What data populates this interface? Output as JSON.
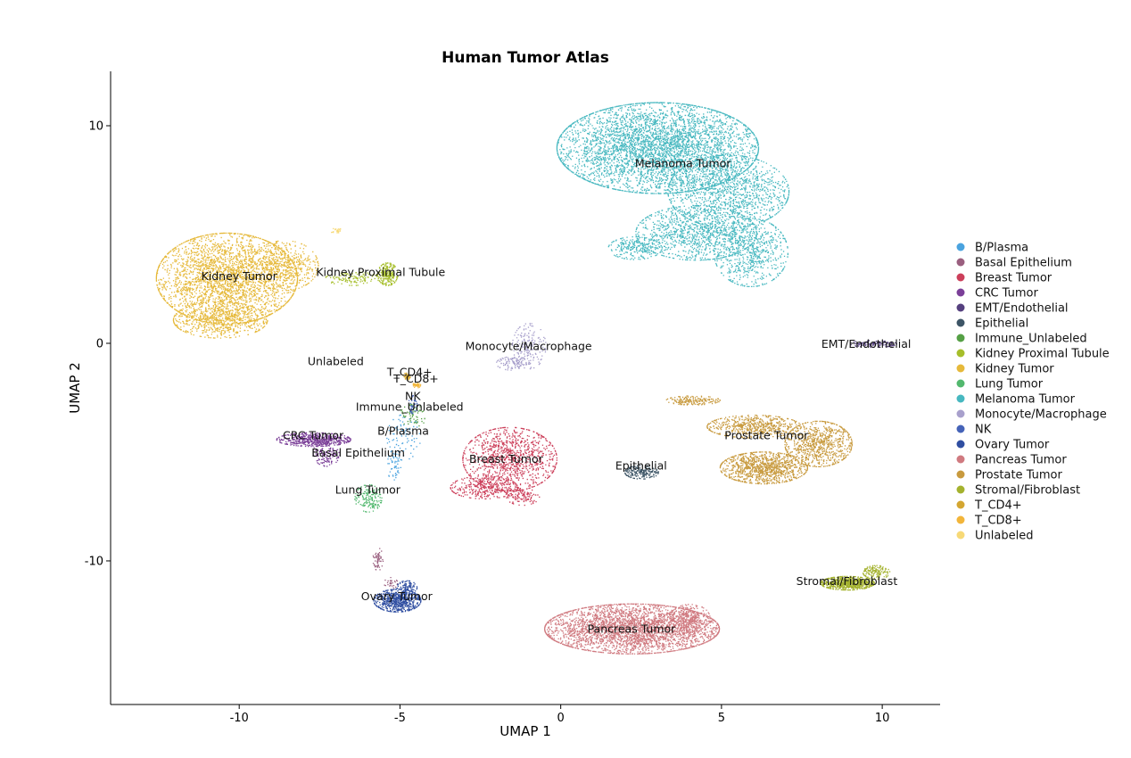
{
  "chart_data": {
    "type": "scatter",
    "title": "Human Tumor Atlas",
    "xlabel": "UMAP 1",
    "ylabel": "UMAP 2",
    "xlim": [
      -14,
      11.8
    ],
    "ylim": [
      -16.6,
      12.5
    ],
    "xticks": [
      -10,
      -5,
      0,
      5,
      10
    ],
    "yticks": [
      -10,
      0,
      10
    ],
    "grid": false,
    "legend_position": "right",
    "clusters": [
      {
        "name": "B/Plasma",
        "color": "#4aa3df",
        "label_at": [
          -4.9,
          -4.2
        ],
        "blobs": [
          {
            "c": [
              -4.9,
              -4.3
            ],
            "r": [
              0.5,
              1.0
            ],
            "n": 90
          },
          {
            "c": [
              -5.2,
              -5.6
            ],
            "r": [
              0.2,
              0.7
            ],
            "n": 50
          }
        ]
      },
      {
        "name": "Basal Epithelium",
        "color": "#9a5f7f",
        "label_at": [
          -6.3,
          -5.2
        ],
        "blobs": [
          {
            "c": [
              -5.7,
              -9.9
            ],
            "r": [
              0.15,
              0.5
            ],
            "n": 60
          },
          {
            "c": [
              -5.3,
              -11.0
            ],
            "r": [
              0.2,
              0.25
            ],
            "n": 30
          }
        ]
      },
      {
        "name": "Breast Tumor",
        "color": "#cc3f5a",
        "label_at": [
          -1.7,
          -5.5
        ],
        "blobs": [
          {
            "c": [
              -1.6,
              -5.3
            ],
            "r": [
              1.4,
              1.4
            ],
            "n": 1100
          },
          {
            "c": [
              -2.4,
              -6.6
            ],
            "r": [
              1.0,
              0.5
            ],
            "n": 350
          },
          {
            "c": [
              -1.2,
              -7.0
            ],
            "r": [
              0.5,
              0.4
            ],
            "n": 120
          }
        ]
      },
      {
        "name": "CRC Tumor",
        "color": "#7b3f98",
        "label_at": [
          -7.7,
          -4.4
        ],
        "blobs": [
          {
            "c": [
              -7.7,
              -4.4
            ],
            "r": [
              1.1,
              0.3
            ],
            "n": 550
          },
          {
            "c": [
              -7.3,
              -5.0
            ],
            "r": [
              0.4,
              0.6
            ],
            "n": 150
          }
        ]
      },
      {
        "name": "EMT/Endothelial",
        "color": "#55407f",
        "label_at": [
          9.5,
          -0.2
        ],
        "blobs": [
          {
            "c": [
              9.7,
              0.0
            ],
            "r": [
              0.7,
              0.15
            ],
            "n": 120
          }
        ]
      },
      {
        "name": "Epithelial",
        "color": "#3d5566",
        "label_at": [
          2.5,
          -5.8
        ],
        "blobs": [
          {
            "c": [
              2.5,
              -5.9
            ],
            "r": [
              0.5,
              0.3
            ],
            "n": 200
          }
        ]
      },
      {
        "name": "Immune_Unlabeled",
        "color": "#55a045",
        "label_at": [
          -4.7,
          -3.1
        ],
        "blobs": [
          {
            "c": [
              -4.6,
              -3.3
            ],
            "r": [
              0.4,
              0.5
            ],
            "n": 70
          }
        ]
      },
      {
        "name": "Kidney Proximal Tubule",
        "color": "#a6be2a",
        "label_at": [
          -5.6,
          3.1
        ],
        "blobs": [
          {
            "c": [
              -5.4,
              3.2
            ],
            "r": [
              0.3,
              0.5
            ],
            "n": 220
          },
          {
            "c": [
              -6.5,
              3.0
            ],
            "r": [
              0.8,
              0.3
            ],
            "n": 120
          }
        ]
      },
      {
        "name": "Kidney Tumor",
        "color": "#e6b93a",
        "label_at": [
          -10.0,
          2.9
        ],
        "blobs": [
          {
            "c": [
              -10.4,
              3.0
            ],
            "r": [
              2.1,
              2.0
            ],
            "n": 3000
          },
          {
            "c": [
              -10.6,
              1.1
            ],
            "r": [
              1.4,
              0.8
            ],
            "n": 700
          },
          {
            "c": [
              -8.6,
              3.6
            ],
            "r": [
              1.0,
              1.1
            ],
            "n": 500
          }
        ]
      },
      {
        "name": "Lung Tumor",
        "color": "#52b86e",
        "label_at": [
          -6.0,
          -6.9
        ],
        "blobs": [
          {
            "c": [
              -6.0,
              -7.1
            ],
            "r": [
              0.4,
              0.6
            ],
            "n": 160
          }
        ]
      },
      {
        "name": "Melanoma Tumor",
        "color": "#47b8c0",
        "label_at": [
          3.8,
          8.1
        ],
        "blobs": [
          {
            "c": [
              3.0,
              9.0
            ],
            "r": [
              3.0,
              2.0
            ],
            "n": 4500
          },
          {
            "c": [
              5.2,
              7.0
            ],
            "r": [
              1.8,
              1.6
            ],
            "n": 1300
          },
          {
            "c": [
              4.2,
              5.1
            ],
            "r": [
              1.8,
              1.2
            ],
            "n": 1100
          },
          {
            "c": [
              5.9,
              4.2
            ],
            "r": [
              1.1,
              1.5
            ],
            "n": 700
          },
          {
            "c": [
              2.3,
              4.4
            ],
            "r": [
              0.8,
              0.5
            ],
            "n": 250
          }
        ]
      },
      {
        "name": "Monocyte/Macrophage",
        "color": "#a8a0cc",
        "label_at": [
          -1.0,
          -0.3
        ],
        "blobs": [
          {
            "c": [
              -1.0,
              -0.1
            ],
            "r": [
              0.5,
              1.0
            ],
            "n": 180
          },
          {
            "c": [
              -1.5,
              -0.9
            ],
            "r": [
              0.5,
              0.3
            ],
            "n": 100
          }
        ]
      },
      {
        "name": "NK",
        "color": "#4563b8",
        "label_at": [
          -4.6,
          -2.6
        ],
        "blobs": [
          {
            "c": [
              -4.6,
              -2.8
            ],
            "r": [
              0.15,
              0.4
            ],
            "n": 40
          }
        ]
      },
      {
        "name": "Ovary Tumor",
        "color": "#2f4ea1",
        "label_at": [
          -5.1,
          -11.8
        ],
        "blobs": [
          {
            "c": [
              -5.1,
              -11.8
            ],
            "r": [
              0.7,
              0.5
            ],
            "n": 700
          },
          {
            "c": [
              -4.8,
              -11.2
            ],
            "r": [
              0.3,
              0.3
            ],
            "n": 100
          }
        ]
      },
      {
        "name": "Pancreas Tumor",
        "color": "#d07a80",
        "label_at": [
          2.2,
          -13.3
        ],
        "blobs": [
          {
            "c": [
              2.2,
              -13.1
            ],
            "r": [
              2.6,
              1.1
            ],
            "n": 3400
          },
          {
            "c": [
              4.0,
              -12.6
            ],
            "r": [
              0.6,
              0.6
            ],
            "n": 300
          }
        ]
      },
      {
        "name": "Prostate Tumor",
        "color": "#c89a3e",
        "label_at": [
          6.4,
          -4.4
        ],
        "blobs": [
          {
            "c": [
              6.3,
              -5.7
            ],
            "r": [
              1.3,
              0.7
            ],
            "n": 1100
          },
          {
            "c": [
              8.0,
              -4.6
            ],
            "r": [
              1.0,
              1.0
            ],
            "n": 800
          },
          {
            "c": [
              6.0,
              -3.8
            ],
            "r": [
              1.4,
              0.5
            ],
            "n": 600
          },
          {
            "c": [
              4.1,
              -2.6
            ],
            "r": [
              0.8,
              0.2
            ],
            "n": 180
          }
        ]
      },
      {
        "name": "Stromal/Fibroblast",
        "color": "#a4b22e",
        "label_at": [
          8.9,
          -11.1
        ],
        "blobs": [
          {
            "c": [
              8.9,
              -11.0
            ],
            "r": [
              0.8,
              0.3
            ],
            "n": 700
          },
          {
            "c": [
              9.8,
              -10.5
            ],
            "r": [
              0.4,
              0.3
            ],
            "n": 150
          }
        ]
      },
      {
        "name": "T_CD4+",
        "color": "#d4a631",
        "label_at": [
          -4.7,
          -1.5
        ],
        "blobs": [
          {
            "c": [
              -4.8,
              -1.5
            ],
            "r": [
              0.12,
              0.15
            ],
            "n": 50
          }
        ]
      },
      {
        "name": "T_CD8+",
        "color": "#f2b53a",
        "label_at": [
          -4.5,
          -1.8
        ],
        "blobs": [
          {
            "c": [
              -4.5,
              -1.9
            ],
            "r": [
              0.12,
              0.12
            ],
            "n": 40
          }
        ]
      },
      {
        "name": "Unlabeled",
        "color": "#f7d977",
        "label_at": [
          -7.0,
          -1.0
        ],
        "blobs": [
          {
            "c": [
              -7.0,
              5.2
            ],
            "r": [
              0.2,
              0.1
            ],
            "n": 25
          }
        ]
      }
    ]
  }
}
